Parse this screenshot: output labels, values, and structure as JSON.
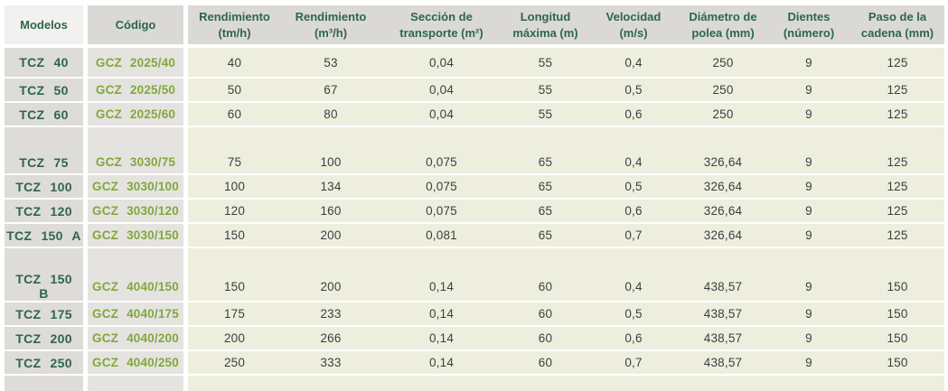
{
  "table": {
    "columns": [
      {
        "id": "modelos",
        "label": "Modelos"
      },
      {
        "id": "codigo",
        "label": "Código"
      },
      {
        "id": "rend_tm",
        "label": "Rendimiento\n(tm/h)"
      },
      {
        "id": "rend_m3",
        "label": "Rendimiento\n(m³/h)"
      },
      {
        "id": "seccion",
        "label": "Sección de\ntransporte (m²)"
      },
      {
        "id": "longitud",
        "label": "Longitud\nmáxima (m)"
      },
      {
        "id": "velocidad",
        "label": "Velocidad\n(m/s)"
      },
      {
        "id": "diametro",
        "label": "Diámetro de\npolea (mm)"
      },
      {
        "id": "dientes",
        "label": "Dientes\n(número)"
      },
      {
        "id": "paso",
        "label": "Paso de la\ncadena (mm)"
      }
    ],
    "rows": [
      {
        "model": "TCZ 40",
        "code": "GCZ 2025/40",
        "values": [
          "40",
          "53",
          "0,04",
          "55",
          "0,4",
          "250",
          "9",
          "125"
        ]
      },
      {
        "model": "TCZ 50",
        "code": "GCZ 2025/50",
        "values": [
          "50",
          "67",
          "0,04",
          "55",
          "0,5",
          "250",
          "9",
          "125"
        ]
      },
      {
        "model": "TCZ 60",
        "code": "GCZ 2025/60",
        "values": [
          "60",
          "80",
          "0,04",
          "55",
          "0,6",
          "250",
          "9",
          "125"
        ]
      },
      {
        "spacer": true
      },
      {
        "model": "TCZ 75",
        "code": "GCZ 3030/75",
        "values": [
          "75",
          "100",
          "0,075",
          "65",
          "0,4",
          "326,64",
          "9",
          "125"
        ]
      },
      {
        "model": "TCZ 100",
        "code": "GCZ 3030/100",
        "values": [
          "100",
          "134",
          "0,075",
          "65",
          "0,5",
          "326,64",
          "9",
          "125"
        ]
      },
      {
        "model": "TCZ 120",
        "code": "GCZ 3030/120",
        "values": [
          "120",
          "160",
          "0,075",
          "65",
          "0,6",
          "326,64",
          "9",
          "125"
        ]
      },
      {
        "model": "TCZ 150 A",
        "code": "GCZ 3030/150",
        "values": [
          "150",
          "200",
          "0,081",
          "65",
          "0,7",
          "326,64",
          "9",
          "125"
        ]
      },
      {
        "spacer": true
      },
      {
        "model": "TCZ 150 B",
        "code": "GCZ 4040/150",
        "values": [
          "150",
          "200",
          "0,14",
          "60",
          "0,4",
          "438,57",
          "9",
          "150"
        ]
      },
      {
        "model": "TCZ 175",
        "code": "GCZ 4040/175",
        "values": [
          "175",
          "233",
          "0,14",
          "60",
          "0,5",
          "438,57",
          "9",
          "150"
        ]
      },
      {
        "model": "TCZ 200",
        "code": "GCZ 4040/200",
        "values": [
          "200",
          "266",
          "0,14",
          "60",
          "0,6",
          "438,57",
          "9",
          "150"
        ]
      },
      {
        "model": "TCZ 250",
        "code": "GCZ 4040/250",
        "values": [
          "250",
          "333",
          "0,14",
          "60",
          "0,7",
          "438,57",
          "9",
          "150"
        ]
      },
      {
        "spacer": true,
        "footer": true
      }
    ]
  },
  "colors": {
    "header_text_green": "#2d664d",
    "code_text_green": "#83a73e",
    "data_text": "#3e3e3e",
    "header_bg": "#dbd9d6",
    "header_first_bg": "#f2f1ef",
    "model_col_bg": "#dedcd9",
    "code_col_bg": "#e5e3e0",
    "data_area_bg": "#eeeedf"
  }
}
